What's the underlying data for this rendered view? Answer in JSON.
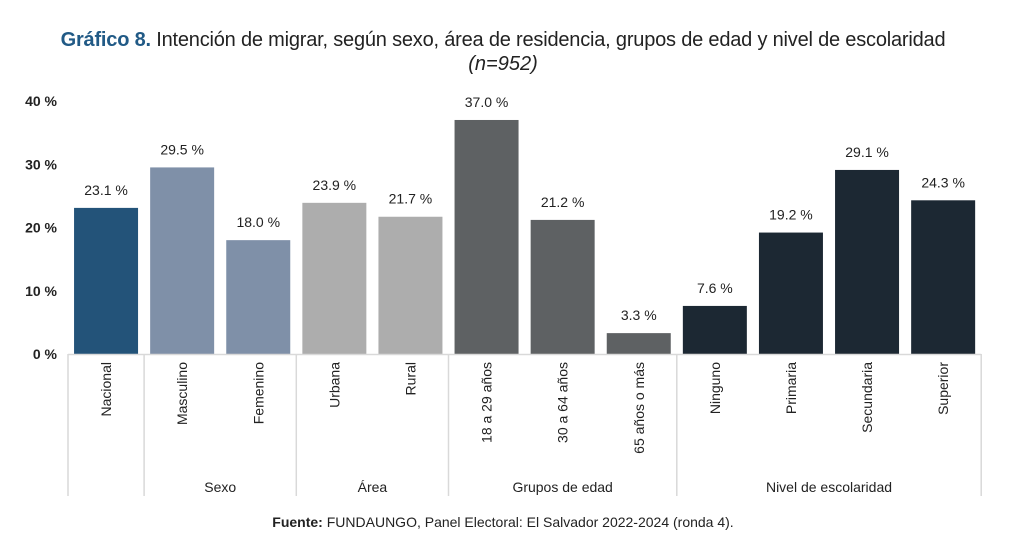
{
  "title": {
    "lead": "Gráfico 8.",
    "text": " Intención de migrar, según sexo, área de residencia, grupos de edad y nivel de escolaridad",
    "subtitle": "(n=952)"
  },
  "source": {
    "label": "Fuente:",
    "text": " FUNDAUNGO, Panel Electoral: El Salvador 2022-2024 (ronda 4)."
  },
  "chart_data": {
    "type": "bar",
    "title": "Gráfico 8. Intención de migrar, según sexo, área de residencia, grupos de edad y nivel de escolaridad (n=952)",
    "xlabel": "",
    "ylabel": "",
    "ylim": [
      0,
      40
    ],
    "yticks": [
      0,
      10,
      20,
      30,
      40
    ],
    "ytick_labels": [
      "0 %",
      "10 %",
      "20 %",
      "30 %",
      "40 %"
    ],
    "grid": false,
    "legend": "none",
    "categories": [
      "Nacional",
      "Masculino",
      "Femenino",
      "Urbana",
      "Rural",
      "18 a 29 años",
      "30 a 64 años",
      "65 años o más",
      "Ninguno",
      "Primaria",
      "Secundaria",
      "Superior"
    ],
    "values": [
      23.1,
      29.5,
      18.0,
      23.9,
      21.7,
      37.0,
      21.2,
      3.3,
      7.6,
      19.2,
      29.1,
      24.3
    ],
    "value_labels": [
      "23.1 %",
      "29.5 %",
      "18.0 %",
      "23.9 %",
      "21.7 %",
      "37.0 %",
      "21.2 %",
      "3.3 %",
      "7.6 %",
      "19.2 %",
      "29.1 %",
      "24.3 %"
    ],
    "groups": [
      {
        "name": "",
        "categories": [
          "Nacional"
        ],
        "color": "#235379"
      },
      {
        "name": "Sexo",
        "categories": [
          "Masculino",
          "Femenino"
        ],
        "color": "#7f90a8"
      },
      {
        "name": "Área",
        "categories": [
          "Urbana",
          "Rural"
        ],
        "color": "#adadad"
      },
      {
        "name": "Grupos de edad",
        "categories": [
          "18 a 29 años",
          "30 a 64 años",
          "65 años o más"
        ],
        "color": "#5e6163"
      },
      {
        "name": "Nivel de escolaridad",
        "categories": [
          "Ninguno",
          "Primaria",
          "Secundaria",
          "Superior"
        ],
        "color": "#1c2833"
      }
    ]
  }
}
